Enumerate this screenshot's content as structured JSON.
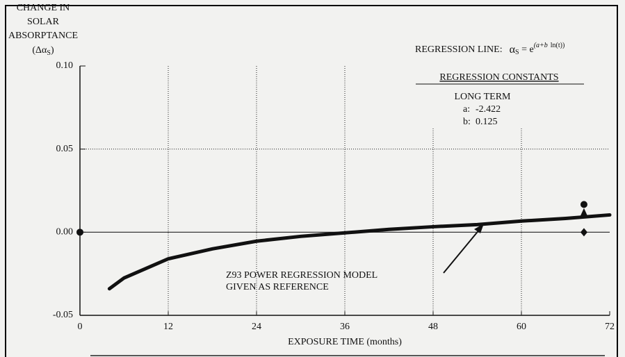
{
  "chart_data": {
    "type": "line",
    "ylabel": [
      "CHANGE IN",
      "SOLAR",
      "ABSORPTANCE",
      "(Δα",
      "S",
      ")"
    ],
    "xlabel": "EXPOSURE TIME (months)",
    "regression_line": [
      "REGRESSION LINE:",
      "α",
      "S",
      " = e",
      "(a+b",
      "ln(t))"
    ],
    "constants": {
      "title": "REGRESSION CONSTANTS",
      "subtitle": "LONG TERM",
      "a_label": "a:",
      "a": -2.422,
      "b_label": "b:",
      "b": 0.125
    },
    "annotation": [
      "Z93 POWER REGRESSION MODEL",
      "GIVEN AS REFERENCE"
    ],
    "x": [
      4,
      6,
      12,
      18,
      24,
      30,
      36,
      42,
      48,
      54,
      60,
      66,
      72
    ],
    "values": [
      -0.034,
      -0.0275,
      -0.016,
      -0.01,
      -0.0054,
      -0.0025,
      -0.0004,
      0.0017,
      0.0033,
      0.0046,
      0.0067,
      0.0083,
      0.0104
    ],
    "color": "#111111",
    "markers": [
      {
        "x": 0,
        "y": 0,
        "shape": "circle"
      },
      {
        "x": 68.5,
        "y": 0.0167,
        "shape": "circle"
      },
      {
        "x": 68.5,
        "y": 0.012,
        "shape": "triangle"
      },
      {
        "x": 68.5,
        "y": 0,
        "shape": "diamond"
      }
    ],
    "xlim": [
      0,
      72
    ],
    "xticks": [
      0,
      12,
      24,
      36,
      48,
      60,
      72
    ],
    "ylim": [
      -0.05,
      0.1
    ],
    "yticks": [
      {
        "value": -0.05,
        "label": "-0.05"
      },
      {
        "value": 0,
        "label": "0.00"
      },
      {
        "value": 0.05,
        "label": "0.05"
      },
      {
        "value": 0.1,
        "label": "0.10"
      }
    ],
    "grid": true
  }
}
